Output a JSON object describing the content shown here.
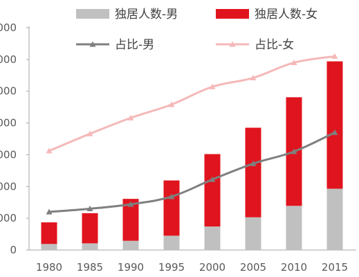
{
  "chart_data": {
    "type": "bar",
    "stacked": true,
    "categories": [
      "1980",
      "1985",
      "1990",
      "1995",
      "2000",
      "2005",
      "2010",
      "2015"
    ],
    "y_axis_tick_labels_visible": [
      "000",
      "000",
      "000",
      "000",
      "000",
      "000",
      "000",
      "0"
    ],
    "left_axis": {
      "ylim": [
        0,
        7000
      ],
      "tick_step": 1000
    },
    "right_axis": {
      "ylim": [
        0,
        35
      ],
      "tick_labels_shown": false
    },
    "series": [
      {
        "name": "独居人数-男",
        "kind": "bar",
        "axis": "left",
        "color": "#c0c0c0",
        "values": [
          190,
          210,
          290,
          450,
          740,
          1030,
          1390,
          1930
        ]
      },
      {
        "name": "独居人数-女",
        "kind": "bar",
        "axis": "left",
        "color": "#e0141e",
        "values": [
          680,
          950,
          1320,
          1740,
          2280,
          2820,
          3420,
          4010
        ]
      },
      {
        "name": "占比-男",
        "kind": "line",
        "axis": "right",
        "color": "#7f7f7f",
        "marker": "triangle",
        "values": [
          6.0,
          6.5,
          7.2,
          8.4,
          11.1,
          13.6,
          15.5,
          18.5
        ]
      },
      {
        "name": "占比-女",
        "kind": "line",
        "axis": "right",
        "color": "#f5b8b8",
        "marker": "triangle",
        "values": [
          15.6,
          18.3,
          20.8,
          22.9,
          25.7,
          27.1,
          29.5,
          30.5
        ]
      }
    ],
    "legend_position": "top",
    "grid": false,
    "title": "",
    "xlabel": "",
    "ylabel": ""
  }
}
